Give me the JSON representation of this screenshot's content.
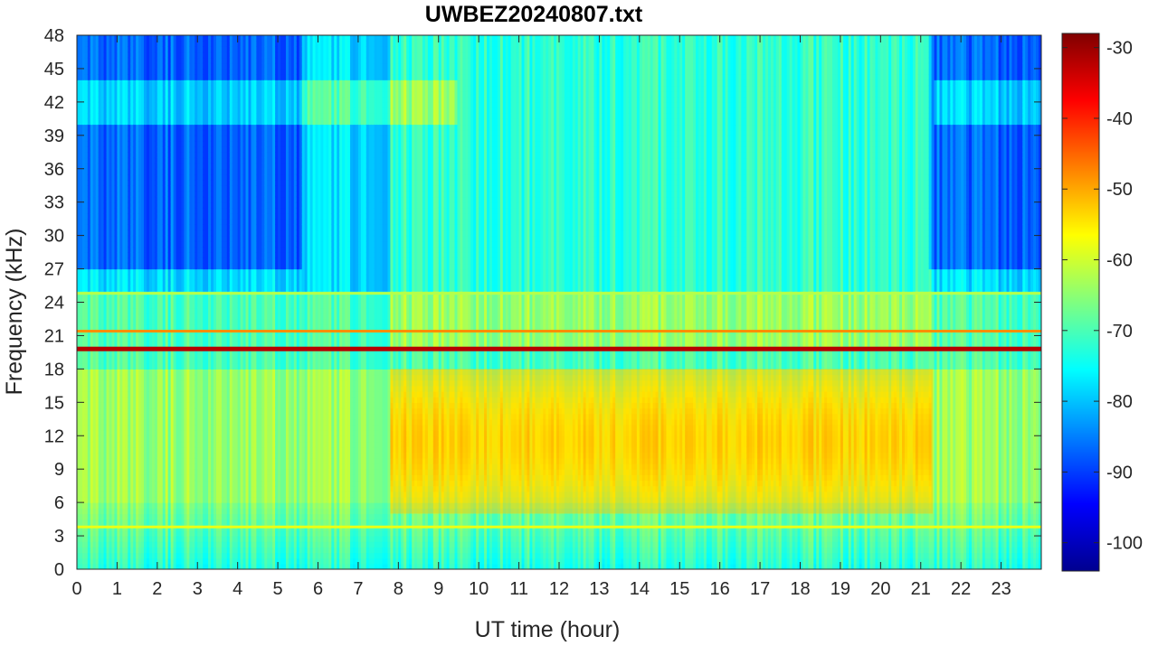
{
  "chart_data": {
    "type": "heatmap",
    "title": "UWBEZ20240807.txt",
    "xlabel": "UT time (hour)",
    "ylabel": "Frequency (kHz)",
    "xlim": [
      0,
      24
    ],
    "ylim": [
      0,
      48
    ],
    "xticks": [
      "0",
      "1",
      "2",
      "3",
      "4",
      "5",
      "6",
      "7",
      "8",
      "9",
      "10",
      "11",
      "12",
      "13",
      "14",
      "15",
      "16",
      "17",
      "18",
      "19",
      "20",
      "21",
      "22",
      "23"
    ],
    "yticks": [
      "0",
      "3",
      "6",
      "9",
      "12",
      "15",
      "18",
      "21",
      "24",
      "27",
      "30",
      "33",
      "36",
      "39",
      "42",
      "45",
      "48"
    ],
    "colorbar": {
      "colormap": "jet",
      "clim": [
        -104,
        -28
      ],
      "ticks": [
        "-100",
        "-90",
        "-80",
        "-70",
        "-60",
        "-50",
        "-40",
        "-30"
      ]
    },
    "features": [
      {
        "label": "strong transmitter line",
        "freq_khz": 19.8,
        "t_start": 0,
        "t_end": 24,
        "level_db": -32
      },
      {
        "label": "transmitter line",
        "freq_khz": 21.4,
        "t_start": 0,
        "t_end": 24,
        "level_db": -48
      },
      {
        "label": "transmitter line",
        "freq_khz": 24.8,
        "t_start": 0,
        "t_end": 24,
        "level_db": -62
      },
      {
        "label": "transmitter line",
        "freq_khz": 3.8,
        "t_start": 0,
        "t_end": 24,
        "level_db": -58
      },
      {
        "label": "daytime broadband noise",
        "freq_khz_range": [
          5,
          18
        ],
        "t_start": 7.8,
        "t_end": 21.3,
        "level_db": -52
      }
    ]
  }
}
